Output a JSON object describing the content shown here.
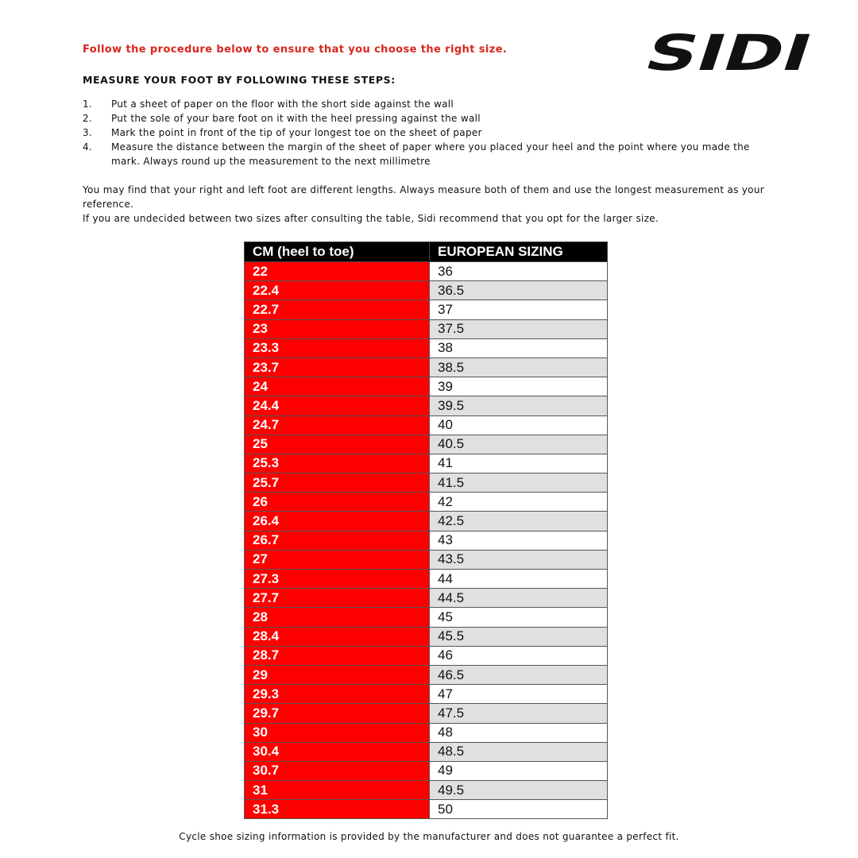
{
  "intro": "Follow the procedure below to ensure that you choose the right size.",
  "logo": {
    "text": "SIDI"
  },
  "heading": "MEASURE YOUR FOOT BY FOLLOWING THESE STEPS:",
  "steps": [
    {
      "num": "1.",
      "text": "Put a sheet of paper on the floor with the short side against the wall"
    },
    {
      "num": "2.",
      "text": "Put the sole of your bare foot on it with the heel pressing against the wall"
    },
    {
      "num": "3.",
      "text": "Mark the point in front of the tip of your longest toe on the sheet of paper"
    },
    {
      "num": "4.",
      "text": "Measure the distance between the margin of the sheet of paper where you placed your heel and the point where you made the mark. Always round up the measurement to the next millimetre"
    }
  ],
  "notes": [
    "You may find that your right and left foot are different lengths. Always measure both of them and use the longest measurement as your reference.",
    "If you are undecided between two sizes after consulting the table, Sidi recommend that you opt for the larger size."
  ],
  "table": {
    "headers": [
      "CM (heel to toe)",
      "EUROPEAN SIZING"
    ],
    "rows": [
      [
        "22",
        "36"
      ],
      [
        "22.4",
        "36.5"
      ],
      [
        "22.7",
        "37"
      ],
      [
        "23",
        "37.5"
      ],
      [
        "23.3",
        "38"
      ],
      [
        "23.7",
        "38.5"
      ],
      [
        "24",
        "39"
      ],
      [
        "24.4",
        "39.5"
      ],
      [
        "24.7",
        "40"
      ],
      [
        "25",
        "40.5"
      ],
      [
        "25.3",
        "41"
      ],
      [
        "25.7",
        "41.5"
      ],
      [
        "26",
        "42"
      ],
      [
        "26.4",
        "42.5"
      ],
      [
        "26.7",
        "43"
      ],
      [
        "27",
        "43.5"
      ],
      [
        "27.3",
        "44"
      ],
      [
        "27.7",
        "44.5"
      ],
      [
        "28",
        "45"
      ],
      [
        "28.4",
        "45.5"
      ],
      [
        "28.7",
        "46"
      ],
      [
        "29",
        "46.5"
      ],
      [
        "29.3",
        "47"
      ],
      [
        "29.7",
        "47.5"
      ],
      [
        "30",
        "48"
      ],
      [
        "30.4",
        "48.5"
      ],
      [
        "30.7",
        "49"
      ],
      [
        "31",
        "49.5"
      ],
      [
        "31.3",
        "50"
      ]
    ]
  },
  "footer": "Cycle shoe sizing information is provided by the manufacturer and does not guarantee a perfect fit.",
  "colors": {
    "accent_red": "#ff0000",
    "intro_red": "#d9261c",
    "header_black": "#000000",
    "alt_row_gray": "#e0e0e0"
  }
}
